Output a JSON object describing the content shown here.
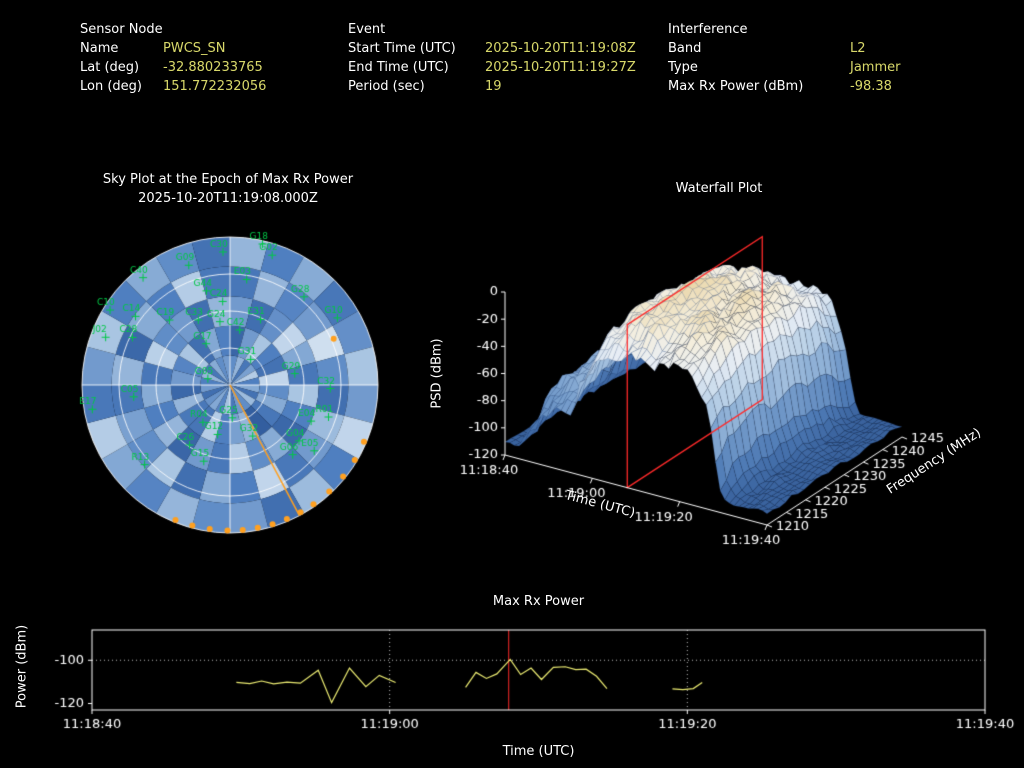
{
  "theme": {
    "bg": "#000000",
    "fg": "#ffffff",
    "value_color": "#d8d86a",
    "sat_color": "#00c846",
    "marker_color": "#ffa020",
    "grid_color": "rgba(255,255,255,0.85)"
  },
  "header": {
    "sensor": {
      "title": "Sensor Node",
      "rows": [
        {
          "label": "Name",
          "value": "PWCS_SN"
        },
        {
          "label": "Lat (deg)",
          "value": "-32.880233765"
        },
        {
          "label": "Lon (deg)",
          "value": "151.772232056"
        }
      ]
    },
    "event": {
      "title": "Event",
      "rows": [
        {
          "label": "Start Time (UTC)",
          "value": "2025-10-20T11:19:08Z"
        },
        {
          "label": "End Time (UTC)",
          "value": "2025-10-20T11:19:27Z"
        },
        {
          "label": "Period (sec)",
          "value": "19"
        }
      ]
    },
    "interference": {
      "title": "Interference",
      "rows": [
        {
          "label": "Band",
          "value": "L2"
        },
        {
          "label": "Type",
          "value": "Jammer"
        },
        {
          "label": "Max Rx Power (dBm)",
          "value": "-98.38"
        }
      ]
    }
  },
  "chart_data": [
    {
      "type": "polar-heatmap",
      "title": "Sky Plot at the Epoch of Max Rx Power",
      "subtitle": "2025-10-20T11:19:08.000Z",
      "azimuth_bins": 24,
      "elevation_bins": 5,
      "colormap": [
        "#13305f",
        "#2c5697",
        "#4f7fc0",
        "#a6c3e1",
        "#eaf1f9"
      ],
      "values": [
        [
          0.55,
          0.7,
          0.45,
          0.62,
          0.8,
          0.5,
          0.66,
          0.42,
          0.72,
          0.55,
          0.6,
          0.46,
          0.75,
          0.52,
          0.65,
          0.57,
          0.4,
          0.6,
          0.5,
          0.7,
          0.45,
          0.66,
          0.55,
          0.6
        ],
        [
          0.35,
          0.6,
          0.76,
          0.5,
          0.42,
          0.85,
          0.55,
          0.66,
          0.45,
          0.3,
          0.7,
          0.62,
          0.5,
          0.8,
          0.44,
          0.46,
          0.7,
          0.36,
          0.6,
          0.52,
          0.76,
          0.4,
          0.65,
          0.5
        ],
        [
          0.6,
          0.4,
          0.56,
          0.85,
          0.65,
          0.45,
          0.76,
          0.5,
          0.36,
          0.66,
          0.55,
          0.8,
          0.46,
          0.6,
          0.35,
          0.7,
          0.5,
          0.66,
          0.45,
          0.82,
          0.55,
          0.6,
          0.4,
          0.7
        ],
        [
          0.45,
          0.7,
          0.52,
          0.6,
          0.9,
          0.55,
          0.4,
          0.72,
          0.6,
          0.46,
          0.85,
          0.5,
          0.66,
          0.4,
          0.76,
          0.55,
          0.62,
          0.45,
          0.7,
          0.36,
          0.66,
          0.5,
          0.8,
          0.46
        ],
        [
          0.7,
          0.5,
          0.66,
          0.45,
          0.56,
          0.76,
          0.6,
          0.85,
          0.5,
          0.72,
          0.4,
          0.6,
          0.55,
          0.7,
          0.52,
          0.65,
          0.8,
          0.46,
          0.6,
          0.76,
          0.5,
          0.66,
          0.55,
          0.42
        ]
      ],
      "satellites": [
        {
          "id": "C30",
          "az": 357,
          "el": 9
        },
        {
          "id": "G18",
          "az": 13,
          "el": 2
        },
        {
          "id": "G02",
          "az": 18,
          "el": 7
        },
        {
          "id": "C40",
          "az": 321,
          "el": 6
        },
        {
          "id": "G09",
          "az": 341,
          "el": 13
        },
        {
          "id": "E03",
          "az": 9,
          "el": 25
        },
        {
          "id": "G28",
          "az": 40,
          "el": 20
        },
        {
          "id": "G10",
          "az": 58,
          "el": 13
        },
        {
          "id": "C10",
          "az": 302,
          "el": 4
        },
        {
          "id": "C28",
          "az": 296,
          "el": 24
        },
        {
          "id": "C14",
          "az": 306,
          "el": 19
        },
        {
          "id": "J02",
          "az": 291,
          "el": 9
        },
        {
          "id": "E17",
          "az": 260,
          "el": 5
        },
        {
          "id": "C05",
          "az": 263,
          "el": 31
        },
        {
          "id": "R13",
          "az": 227,
          "el": 19
        },
        {
          "id": "G31",
          "az": 39,
          "el": 70
        },
        {
          "id": "G05",
          "az": 286,
          "el": 76
        },
        {
          "id": "C32",
          "az": 92,
          "el": 29
        },
        {
          "id": "G29",
          "az": 80,
          "el": 50
        },
        {
          "id": "E04",
          "az": 114,
          "el": 36
        },
        {
          "id": "R01",
          "az": 108,
          "el": 27
        },
        {
          "id": "G04",
          "az": 129,
          "el": 36
        },
        {
          "id": "G06",
          "az": 138,
          "el": 33
        },
        {
          "id": "E05",
          "az": 128,
          "el": 25
        },
        {
          "id": "G32",
          "az": 156,
          "el": 56
        },
        {
          "id": "G25",
          "az": 176,
          "el": 70
        },
        {
          "id": "G12",
          "az": 194,
          "el": 59
        },
        {
          "id": "R04",
          "az": 216,
          "el": 62
        },
        {
          "id": "C26",
          "az": 214,
          "el": 46
        },
        {
          "id": "G15",
          "az": 199,
          "el": 41
        },
        {
          "id": "C42",
          "az": 10,
          "el": 56
        },
        {
          "id": "G24",
          "az": 351,
          "el": 51
        },
        {
          "id": "C33",
          "az": 334,
          "el": 46
        },
        {
          "id": "E31",
          "az": 25,
          "el": 46
        },
        {
          "id": "C24",
          "az": 355,
          "el": 39
        },
        {
          "id": "G17",
          "az": 330,
          "el": 61
        },
        {
          "id": "G44",
          "az": 346,
          "el": 31
        },
        {
          "id": "C19",
          "az": 317,
          "el": 36
        }
      ],
      "event_azimuth_deg": 152,
      "edge_marker_azimuths": [
        113,
        121,
        129,
        137,
        145,
        151,
        157,
        163,
        169,
        175,
        181,
        188,
        195,
        202
      ],
      "extra_dots": [
        {
          "az": 66,
          "el": 21
        }
      ],
      "sat_color": "#00c846",
      "marker_color": "#ffa020"
    },
    {
      "type": "surface",
      "title": "Waterfall Plot",
      "xlabel": "Time (UTC)",
      "ylabel": "Frequency (MHz)",
      "zlabel": "PSD (dBm)",
      "time_ticks": [
        {
          "sec": 0,
          "label": "11:18:40"
        },
        {
          "sec": 20,
          "label": "11:19:00"
        },
        {
          "sec": 40,
          "label": "11:19:20"
        },
        {
          "sec": 60,
          "label": "11:19:40"
        }
      ],
      "freq_ticks": [
        1210,
        1215,
        1220,
        1225,
        1230,
        1235,
        1240,
        1245
      ],
      "psd_ticks": [
        0,
        -20,
        -40,
        -60,
        -80,
        -100,
        -120
      ],
      "zlim": [
        -120,
        0
      ],
      "time_range_sec": [
        0,
        60
      ],
      "freq_range_mhz": [
        1210,
        1245
      ],
      "noise_floor_dbm": -112,
      "event": {
        "start_sec": 28,
        "end_sec": 47,
        "epoch_sec": 28,
        "peak_dbm": -5,
        "box_color": "#ff2a2a"
      },
      "time_envelope": [
        [
          0,
          -118
        ],
        [
          3,
          -106
        ],
        [
          5,
          -80
        ],
        [
          8,
          -64
        ],
        [
          12,
          -58
        ],
        [
          15,
          -60
        ],
        [
          17,
          -38
        ],
        [
          19,
          -22
        ],
        [
          22,
          -12
        ],
        [
          26,
          -6
        ],
        [
          30,
          -4
        ],
        [
          34,
          -8
        ],
        [
          38,
          -5
        ],
        [
          42,
          -9
        ],
        [
          45,
          -14
        ],
        [
          47,
          -40
        ],
        [
          49,
          -85
        ],
        [
          52,
          -108
        ],
        [
          55,
          -112
        ],
        [
          60,
          -117
        ]
      ],
      "freq_profile": [
        [
          1210,
          -20
        ],
        [
          1213,
          -9
        ],
        [
          1216,
          -3
        ],
        [
          1220,
          0
        ],
        [
          1224,
          -2
        ],
        [
          1228,
          0
        ],
        [
          1232,
          -3
        ],
        [
          1236,
          -6
        ],
        [
          1240,
          -11
        ],
        [
          1245,
          -24
        ]
      ],
      "seed": 11,
      "colormap": [
        [
          -120,
          "#2e5590"
        ],
        [
          -95,
          "#4d79b4"
        ],
        [
          -70,
          "#7da3cf"
        ],
        [
          -45,
          "#b7cfe6"
        ],
        [
          -25,
          "#e8eef5"
        ],
        [
          -12,
          "#f4eedd"
        ],
        [
          0,
          "#e9d3a2"
        ]
      ]
    },
    {
      "type": "line",
      "title": "Max Rx Power",
      "xlabel": "Time (UTC)",
      "ylabel": "Power (dBm)",
      "x_ticks": [
        {
          "sec": 0,
          "label": "11:18:40"
        },
        {
          "sec": 20,
          "label": "11:19:00"
        },
        {
          "sec": 40,
          "label": "11:19:20"
        },
        {
          "sec": 60,
          "label": "11:19:40"
        }
      ],
      "y_ticks": [
        -100,
        -120
      ],
      "ylim": [
        -123,
        -86
      ],
      "time_range_sec": [
        0,
        60
      ],
      "threshold_dbm": -100,
      "event_line_sec": 28,
      "grid_vlines_sec": [
        20,
        40
      ],
      "line_color": "#ecec72",
      "event_line_color": "#ff2a2a",
      "points": [
        [
          9.7,
          -110.2
        ],
        [
          10.6,
          -110.8
        ],
        [
          11.4,
          -109.6
        ],
        [
          12.2,
          -110.9
        ],
        [
          13.1,
          -110.1
        ],
        [
          14.0,
          -110.6
        ],
        [
          15.2,
          -104.6
        ],
        [
          16.1,
          -119.6
        ],
        [
          17.3,
          -103.6
        ],
        [
          18.4,
          -112.2
        ],
        [
          19.3,
          -107.0
        ],
        [
          20.4,
          -110.3
        ],
        null,
        [
          25.1,
          -112.5
        ],
        [
          25.8,
          -105.6
        ],
        [
          26.5,
          -108.4
        ],
        [
          27.2,
          -106.3
        ],
        [
          28.1,
          -99.6
        ],
        [
          28.8,
          -106.6
        ],
        [
          29.5,
          -103.6
        ],
        [
          30.2,
          -108.9
        ],
        [
          31.0,
          -103.3
        ],
        [
          31.8,
          -103.0
        ],
        [
          32.5,
          -104.3
        ],
        [
          33.2,
          -104.1
        ],
        [
          33.9,
          -107.4
        ],
        [
          34.6,
          -113.1
        ],
        null,
        [
          39.0,
          -113.2
        ],
        [
          39.7,
          -113.6
        ],
        [
          40.4,
          -113.1
        ],
        [
          41.0,
          -110.3
        ]
      ]
    }
  ]
}
